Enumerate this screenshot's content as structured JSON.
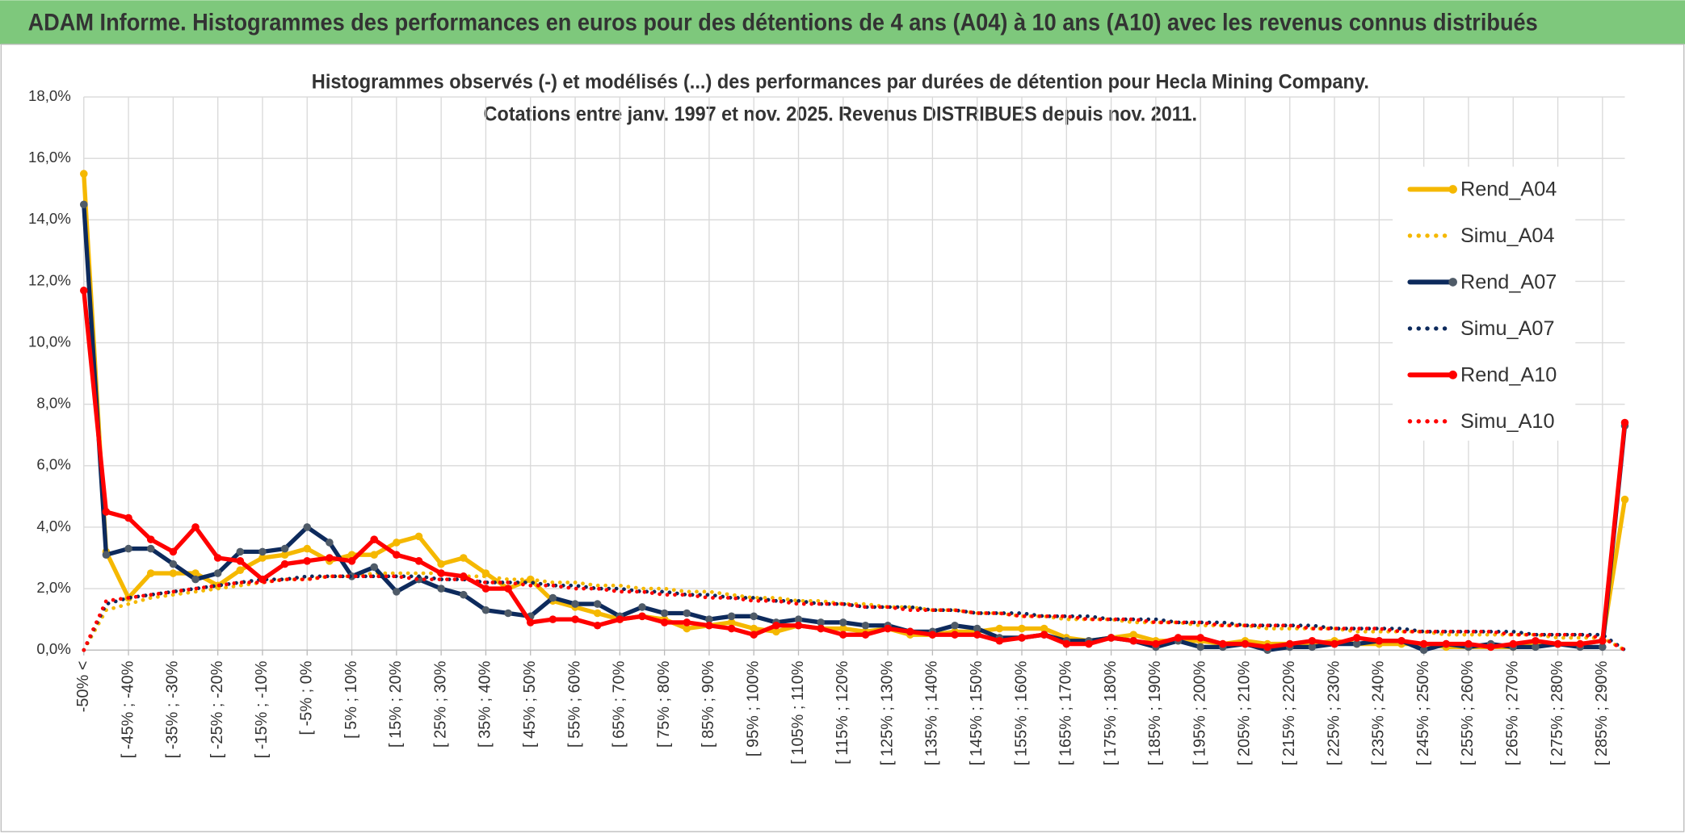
{
  "header": {
    "title": "ADAM Informe. Histogrammes des performances en euros pour des détentions de 4 ans (A04) à 10 ans (A10) avec les revenus connus distribués"
  },
  "chart_data": {
    "type": "line",
    "title": "Histogrammes observés (-) et modélisés (...) des performances par durées de détention pour Hecla Mining Company.",
    "subtitle": "Cotations entre janv. 1997 et nov. 2025. Revenus DISTRIBUES depuis nov. 2011.",
    "categories": [
      "-50% <",
      null,
      "[ -45% ; -40%",
      null,
      "[ -35% ; -30%",
      null,
      "[ -25% ; -20%",
      null,
      "[ -15% ; -10%",
      null,
      "[ -5% ; 0%",
      null,
      "[ 5% ; 10%",
      null,
      "[ 15% ; 20%",
      null,
      "[ 25% ; 30%",
      null,
      "[ 35% ; 40%",
      null,
      "[ 45% ; 50%",
      null,
      "[ 55% ; 60%",
      null,
      "[ 65% ; 70%",
      null,
      "[ 75% ; 80%",
      null,
      "[ 85% ; 90%",
      null,
      "[ 95% ; 100%",
      null,
      "[ 105% ; 110%",
      null,
      "[ 115% ; 120%",
      null,
      "[ 125% ; 130%",
      null,
      "[ 135% ; 140%",
      null,
      "[ 145% ; 150%",
      null,
      "[ 155% ; 160%",
      null,
      "[ 165% ; 170%",
      null,
      "[ 175% ; 180%",
      null,
      "[ 185% ; 190%",
      null,
      "[ 195% ; 200%",
      null,
      "[ 205% ; 210%",
      null,
      "[ 215% ; 220%",
      null,
      "[ 225% ; 230%",
      null,
      "[ 235% ; 240%",
      null,
      "[ 245% ; 250%",
      null,
      "[ 255% ; 260%",
      null,
      "[ 265% ; 270%",
      null,
      "[ 275% ; 280%",
      null,
      "[ 285% ; 290%",
      null
    ],
    "series": [
      {
        "name": "Rend_A04",
        "color": "#f5b800",
        "style": "solid",
        "marker": true,
        "values": [
          15.5,
          3.2,
          1.7,
          2.5,
          2.5,
          2.5,
          2.1,
          2.6,
          3.0,
          3.1,
          3.3,
          2.9,
          3.1,
          3.1,
          3.5,
          3.7,
          2.8,
          3.0,
          2.5,
          2.0,
          2.3,
          1.6,
          1.4,
          1.2,
          1.0,
          1.1,
          1.0,
          0.7,
          0.8,
          0.9,
          0.7,
          0.6,
          0.8,
          0.7,
          0.7,
          0.6,
          0.7,
          0.5,
          0.5,
          0.6,
          0.6,
          0.7,
          0.7,
          0.7,
          0.4,
          0.3,
          0.4,
          0.5,
          0.3,
          0.3,
          0.3,
          0.2,
          0.3,
          0.2,
          0.2,
          0.2,
          0.3,
          0.2,
          0.2,
          0.2,
          0.2,
          0.1,
          0.1,
          0.1,
          0.1,
          0.2,
          0.2,
          0.2,
          0.3,
          4.9
        ]
      },
      {
        "name": "Simu_A04",
        "color": "#f5b800",
        "style": "dotted",
        "marker": false,
        "values": [
          0,
          1.3,
          1.5,
          1.7,
          1.8,
          1.9,
          2.0,
          2.1,
          2.2,
          2.3,
          2.3,
          2.4,
          2.4,
          2.5,
          2.5,
          2.5,
          2.5,
          2.4,
          2.4,
          2.3,
          2.3,
          2.2,
          2.2,
          2.1,
          2.1,
          2.0,
          2.0,
          1.9,
          1.9,
          1.8,
          1.7,
          1.7,
          1.6,
          1.6,
          1.5,
          1.5,
          1.4,
          1.4,
          1.3,
          1.3,
          1.2,
          1.2,
          1.1,
          1.1,
          1.0,
          1.0,
          1.0,
          0.9,
          0.9,
          0.9,
          0.8,
          0.8,
          0.8,
          0.7,
          0.7,
          0.7,
          0.7,
          0.6,
          0.6,
          0.6,
          0.6,
          0.5,
          0.5,
          0.5,
          0.5,
          0.5,
          0.4,
          0.4,
          0.4,
          0.0
        ]
      },
      {
        "name": "Rend_A07",
        "color": "#0d2a5c",
        "style": "solid",
        "marker": true,
        "marker_color": "#4f5b68",
        "values": [
          14.5,
          3.1,
          3.3,
          3.3,
          2.8,
          2.3,
          2.5,
          3.2,
          3.2,
          3.3,
          4.0,
          3.5,
          2.4,
          2.7,
          1.9,
          2.3,
          2.0,
          1.8,
          1.3,
          1.2,
          1.1,
          1.7,
          1.5,
          1.5,
          1.1,
          1.4,
          1.2,
          1.2,
          1.0,
          1.1,
          1.1,
          0.9,
          1.0,
          0.9,
          0.9,
          0.8,
          0.8,
          0.6,
          0.6,
          0.8,
          0.7,
          0.4,
          0.4,
          0.5,
          0.3,
          0.3,
          0.4,
          0.3,
          0.1,
          0.3,
          0.1,
          0.1,
          0.2,
          0.0,
          0.1,
          0.1,
          0.2,
          0.2,
          0.3,
          0.3,
          0.0,
          0.2,
          0.1,
          0.2,
          0.1,
          0.1,
          0.2,
          0.1,
          0.1,
          7.3
        ]
      },
      {
        "name": "Simu_A07",
        "color": "#0d2a5c",
        "style": "dotted",
        "marker": false,
        "values": [
          0,
          1.5,
          1.7,
          1.8,
          1.9,
          2.0,
          2.1,
          2.2,
          2.3,
          2.3,
          2.4,
          2.4,
          2.4,
          2.4,
          2.4,
          2.4,
          2.3,
          2.3,
          2.2,
          2.2,
          2.2,
          2.1,
          2.1,
          2.0,
          2.0,
          1.9,
          1.9,
          1.8,
          1.8,
          1.7,
          1.7,
          1.6,
          1.6,
          1.5,
          1.5,
          1.4,
          1.4,
          1.4,
          1.3,
          1.3,
          1.2,
          1.2,
          1.2,
          1.1,
          1.1,
          1.1,
          1.0,
          1.0,
          1.0,
          0.9,
          0.9,
          0.9,
          0.8,
          0.8,
          0.8,
          0.8,
          0.7,
          0.7,
          0.7,
          0.7,
          0.6,
          0.6,
          0.6,
          0.6,
          0.6,
          0.5,
          0.5,
          0.5,
          0.5,
          0.0
        ]
      },
      {
        "name": "Rend_A10",
        "color": "#ff0000",
        "style": "solid",
        "marker": true,
        "values": [
          11.7,
          4.5,
          4.3,
          3.6,
          3.2,
          4.0,
          3.0,
          2.9,
          2.3,
          2.8,
          2.9,
          3.0,
          2.9,
          3.6,
          3.1,
          2.9,
          2.5,
          2.4,
          2.0,
          2.0,
          0.9,
          1.0,
          1.0,
          0.8,
          1.0,
          1.1,
          0.9,
          0.9,
          0.8,
          0.7,
          0.5,
          0.8,
          0.8,
          0.7,
          0.5,
          0.5,
          0.7,
          0.6,
          0.5,
          0.5,
          0.5,
          0.3,
          0.4,
          0.5,
          0.2,
          0.2,
          0.4,
          0.3,
          0.2,
          0.4,
          0.4,
          0.2,
          0.2,
          0.1,
          0.2,
          0.3,
          0.2,
          0.4,
          0.3,
          0.3,
          0.2,
          0.2,
          0.2,
          0.1,
          0.2,
          0.3,
          0.2,
          0.2,
          0.3,
          7.4
        ]
      },
      {
        "name": "Simu_A10",
        "color": "#ff0000",
        "style": "dotted",
        "marker": false,
        "values": [
          0,
          1.6,
          1.7,
          1.8,
          1.9,
          2.0,
          2.1,
          2.2,
          2.2,
          2.3,
          2.3,
          2.4,
          2.4,
          2.4,
          2.4,
          2.3,
          2.3,
          2.3,
          2.2,
          2.2,
          2.1,
          2.1,
          2.0,
          2.0,
          1.9,
          1.9,
          1.8,
          1.8,
          1.7,
          1.7,
          1.6,
          1.6,
          1.5,
          1.5,
          1.5,
          1.4,
          1.4,
          1.3,
          1.3,
          1.3,
          1.2,
          1.2,
          1.1,
          1.1,
          1.1,
          1.0,
          1.0,
          1.0,
          0.9,
          0.9,
          0.9,
          0.8,
          0.8,
          0.8,
          0.8,
          0.7,
          0.7,
          0.7,
          0.7,
          0.6,
          0.6,
          0.6,
          0.6,
          0.6,
          0.5,
          0.5,
          0.5,
          0.5,
          0.4,
          0.0
        ]
      }
    ],
    "ylim": [
      0,
      18
    ],
    "yticks": [
      {
        "value": 0,
        "label": "0,0%"
      },
      {
        "value": 2,
        "label": "2,0%"
      },
      {
        "value": 4,
        "label": "4,0%"
      },
      {
        "value": 6,
        "label": "6,0%"
      },
      {
        "value": 8,
        "label": "8,0%"
      },
      {
        "value": 10,
        "label": "10,0%"
      },
      {
        "value": 12,
        "label": "12,0%"
      },
      {
        "value": 14,
        "label": "14,0%"
      },
      {
        "value": 16,
        "label": "16,0%"
      },
      {
        "value": 18,
        "label": "18,0%"
      }
    ],
    "grid": true,
    "legend": "right"
  }
}
